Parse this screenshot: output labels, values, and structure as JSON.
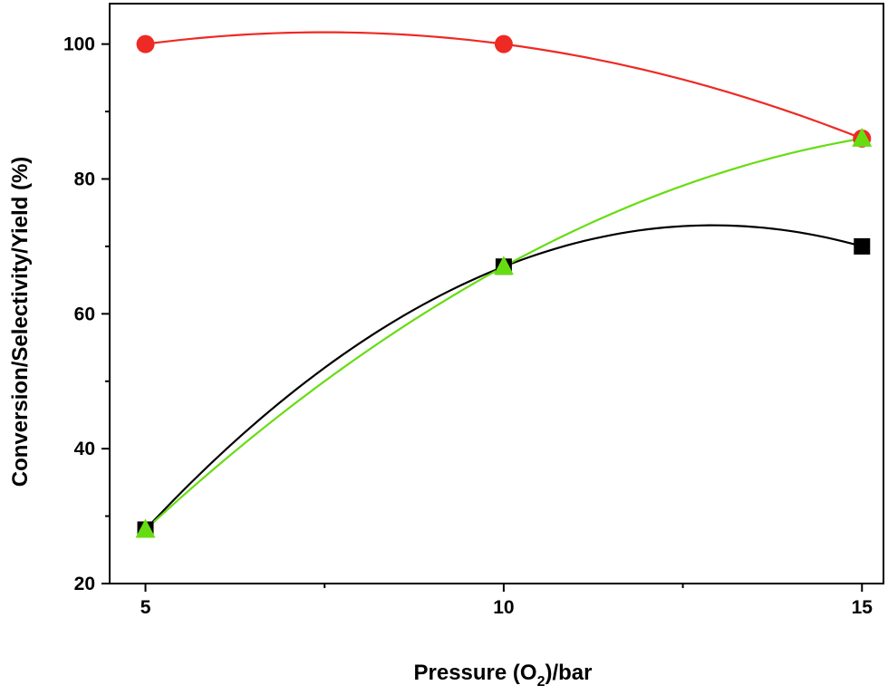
{
  "chart_data": {
    "type": "scatter",
    "xlabel": "Pressure (O2)/bar",
    "xlabel_parts": {
      "prefix": "Pressure (O",
      "subscript": "2",
      "suffix": ")/bar"
    },
    "ylabel": "Conversion/Selectivity/Yield (%)",
    "xlim": [
      4.5,
      15.3
    ],
    "ylim": [
      20,
      106
    ],
    "x_ticks": [
      5,
      10,
      15
    ],
    "y_ticks": [
      20,
      40,
      60,
      80,
      100
    ],
    "grid": false,
    "legend": "none",
    "series": [
      {
        "marker": "square",
        "color": "#000000",
        "line_color": "#000000",
        "x": [
          5,
          10,
          15
        ],
        "values": [
          28,
          67,
          70
        ]
      },
      {
        "marker": "circle",
        "color": "#ee2a24",
        "line_color": "#ee2a24",
        "x": [
          5,
          10,
          15
        ],
        "values": [
          100,
          100,
          86
        ]
      },
      {
        "marker": "triangle",
        "color": "#66dd11",
        "line_color": "#66dd11",
        "x": [
          5,
          10,
          15
        ],
        "values": [
          28,
          67,
          86
        ]
      }
    ]
  }
}
